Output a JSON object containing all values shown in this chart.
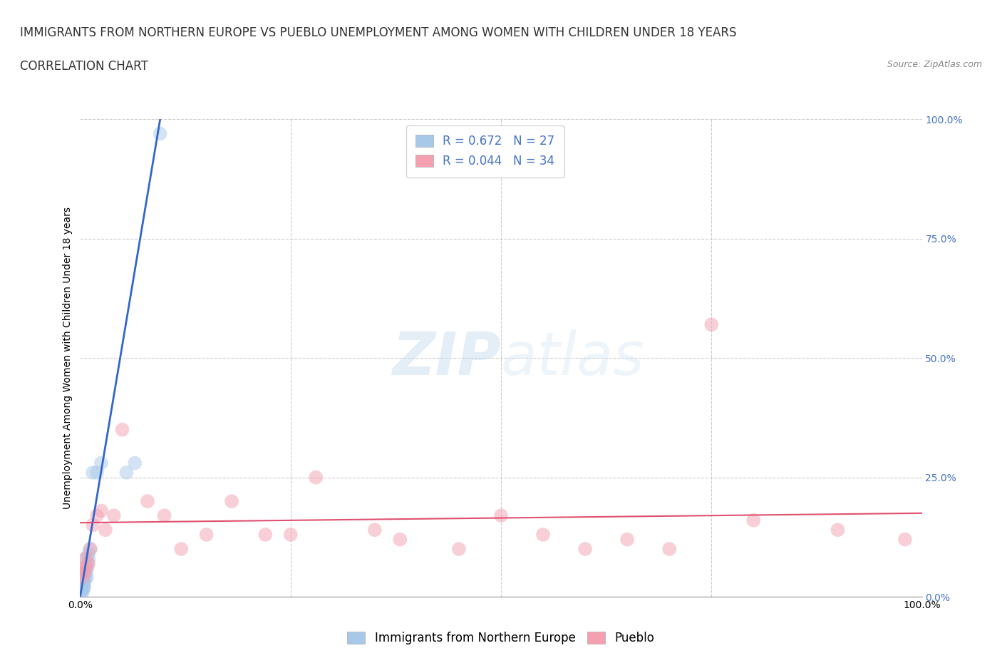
{
  "title_line1": "IMMIGRANTS FROM NORTHERN EUROPE VS PUEBLO UNEMPLOYMENT AMONG WOMEN WITH CHILDREN UNDER 18 YEARS",
  "title_line2": "CORRELATION CHART",
  "source_text": "Source: ZipAtlas.com",
  "ylabel": "Unemployment Among Women with Children Under 18 years",
  "xlim": [
    0.0,
    1.0
  ],
  "ylim": [
    0.0,
    1.0
  ],
  "xticks": [
    0.0,
    0.25,
    0.5,
    0.75,
    1.0
  ],
  "xticklabels": [
    "0.0%",
    "",
    "",
    "",
    "100.0%"
  ],
  "yticks": [
    0.0,
    0.25,
    0.5,
    0.75,
    1.0
  ],
  "right_yticklabels": [
    "0.0%",
    "25.0%",
    "50.0%",
    "75.0%",
    "100.0%"
  ],
  "watermark_zip": "ZIP",
  "watermark_atlas": "atlas",
  "blue_R": 0.672,
  "blue_N": 27,
  "pink_R": 0.044,
  "pink_N": 34,
  "blue_color": "#a8c8e8",
  "pink_color": "#f4a0b0",
  "blue_line_color": "#3366cc",
  "pink_line_color": "#e05070",
  "legend_blue_label": "Immigrants from Northern Europe",
  "legend_pink_label": "Pueblo",
  "blue_scatter_x": [
    0.001,
    0.002,
    0.002,
    0.003,
    0.003,
    0.003,
    0.004,
    0.004,
    0.005,
    0.005,
    0.005,
    0.006,
    0.006,
    0.007,
    0.007,
    0.008,
    0.008,
    0.009,
    0.01,
    0.01,
    0.012,
    0.015,
    0.02,
    0.025,
    0.055,
    0.065,
    0.095
  ],
  "blue_scatter_y": [
    0.01,
    0.02,
    0.01,
    0.03,
    0.02,
    0.01,
    0.04,
    0.02,
    0.05,
    0.03,
    0.02,
    0.06,
    0.04,
    0.05,
    0.08,
    0.06,
    0.04,
    0.07,
    0.08,
    0.09,
    0.1,
    0.26,
    0.26,
    0.28,
    0.26,
    0.28,
    0.97
  ],
  "pink_scatter_x": [
    0.002,
    0.003,
    0.004,
    0.005,
    0.006,
    0.008,
    0.01,
    0.012,
    0.015,
    0.02,
    0.025,
    0.03,
    0.04,
    0.05,
    0.08,
    0.1,
    0.12,
    0.15,
    0.18,
    0.22,
    0.25,
    0.28,
    0.35,
    0.38,
    0.45,
    0.5,
    0.55,
    0.6,
    0.65,
    0.7,
    0.75,
    0.8,
    0.9,
    0.98
  ],
  "pink_scatter_y": [
    0.05,
    0.04,
    0.06,
    0.05,
    0.08,
    0.06,
    0.07,
    0.1,
    0.15,
    0.17,
    0.18,
    0.14,
    0.17,
    0.35,
    0.2,
    0.17,
    0.1,
    0.13,
    0.2,
    0.13,
    0.13,
    0.25,
    0.14,
    0.12,
    0.1,
    0.17,
    0.13,
    0.1,
    0.12,
    0.1,
    0.57,
    0.16,
    0.14,
    0.12
  ],
  "blue_trend_x0": 0.0,
  "blue_trend_y0": 0.0,
  "blue_trend_x1": 0.095,
  "blue_trend_y1": 1.0,
  "pink_trend_x0": 0.0,
  "pink_trend_y0": 0.155,
  "pink_trend_x1": 1.0,
  "pink_trend_y1": 0.175,
  "background_color": "#ffffff",
  "grid_color": "#cccccc",
  "title_fontsize": 12,
  "axis_label_fontsize": 10,
  "tick_fontsize": 10,
  "legend_fontsize": 12,
  "scatter_alpha": 0.5,
  "scatter_size": 200
}
